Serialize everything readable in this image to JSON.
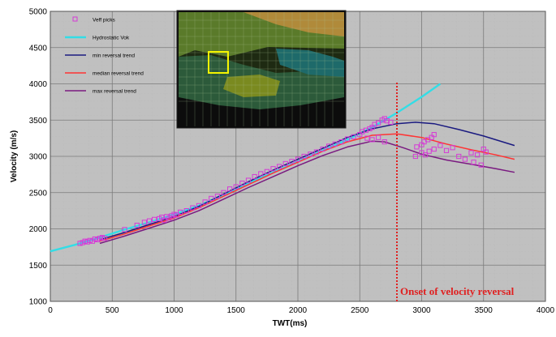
{
  "chart_data": {
    "type": "scatter",
    "title": "",
    "xlabel": "TWT(ms)",
    "ylabel": "Velocity (m/s)",
    "xlim": [
      0,
      4000
    ],
    "ylim": [
      1000,
      5000
    ],
    "xticks": [
      0,
      500,
      1000,
      1500,
      2000,
      2500,
      3000,
      3500,
      4000
    ],
    "yticks": [
      1000,
      1500,
      2000,
      2500,
      3000,
      3500,
      4000,
      4500,
      5000
    ],
    "grid": true,
    "legend_position": "top-left",
    "legend": [
      {
        "name": "Veff picks",
        "color": "#d63ad6",
        "marker": "square"
      },
      {
        "name": "Hydrostatic Vok",
        "color": "#33dde6",
        "marker": "line"
      },
      {
        "name": "min reversal trend",
        "color": "#1a1a80",
        "marker": "line"
      },
      {
        "name": "median reversal trend",
        "color": "#ff3333",
        "marker": "line"
      },
      {
        "name": "max reversal trend",
        "color": "#7a1a80",
        "marker": "line"
      }
    ],
    "series": [
      {
        "name": "Hydrostatic Vok",
        "color": "#33dde6",
        "points": [
          [
            0,
            1690
          ],
          [
            200,
            1780
          ],
          [
            400,
            1880
          ],
          [
            600,
            1990
          ],
          [
            800,
            2090
          ],
          [
            1000,
            2200
          ],
          [
            1200,
            2320
          ],
          [
            1400,
            2470
          ],
          [
            1600,
            2630
          ],
          [
            1800,
            2780
          ],
          [
            2000,
            2930
          ],
          [
            2200,
            3080
          ],
          [
            2400,
            3230
          ],
          [
            2600,
            3400
          ],
          [
            2800,
            3600
          ],
          [
            3000,
            3820
          ],
          [
            3150,
            4000
          ]
        ]
      },
      {
        "name": "min reversal trend",
        "color": "#1a1a80",
        "points": [
          [
            400,
            1850
          ],
          [
            600,
            1950
          ],
          [
            800,
            2060
          ],
          [
            1000,
            2170
          ],
          [
            1200,
            2310
          ],
          [
            1400,
            2480
          ],
          [
            1600,
            2650
          ],
          [
            1800,
            2810
          ],
          [
            2000,
            2960
          ],
          [
            2200,
            3110
          ],
          [
            2400,
            3260
          ],
          [
            2600,
            3380
          ],
          [
            2800,
            3450
          ],
          [
            2950,
            3470
          ],
          [
            3100,
            3450
          ],
          [
            3300,
            3370
          ],
          [
            3500,
            3280
          ],
          [
            3750,
            3150
          ]
        ]
      },
      {
        "name": "median reversal trend",
        "color": "#ff3333",
        "points": [
          [
            400,
            1830
          ],
          [
            600,
            1930
          ],
          [
            800,
            2040
          ],
          [
            1000,
            2150
          ],
          [
            1200,
            2290
          ],
          [
            1400,
            2450
          ],
          [
            1600,
            2610
          ],
          [
            1800,
            2770
          ],
          [
            2000,
            2920
          ],
          [
            2200,
            3070
          ],
          [
            2400,
            3200
          ],
          [
            2600,
            3290
          ],
          [
            2800,
            3310
          ],
          [
            3000,
            3260
          ],
          [
            3200,
            3170
          ],
          [
            3400,
            3090
          ],
          [
            3600,
            3020
          ],
          [
            3750,
            2960
          ]
        ]
      },
      {
        "name": "max reversal trend",
        "color": "#7a1a80",
        "points": [
          [
            400,
            1800
          ],
          [
            600,
            1900
          ],
          [
            800,
            2010
          ],
          [
            1000,
            2120
          ],
          [
            1200,
            2250
          ],
          [
            1400,
            2410
          ],
          [
            1600,
            2570
          ],
          [
            1800,
            2720
          ],
          [
            2000,
            2870
          ],
          [
            2200,
            3010
          ],
          [
            2400,
            3130
          ],
          [
            2600,
            3210
          ],
          [
            2700,
            3200
          ],
          [
            2850,
            3120
          ],
          [
            3000,
            3030
          ],
          [
            3200,
            2950
          ],
          [
            3400,
            2890
          ],
          [
            3600,
            2830
          ],
          [
            3750,
            2780
          ]
        ]
      },
      {
        "name": "Veff picks",
        "color": "#d63ad6",
        "points": [
          [
            240,
            1800
          ],
          [
            260,
            1810
          ],
          [
            280,
            1830
          ],
          [
            300,
            1820
          ],
          [
            320,
            1840
          ],
          [
            340,
            1830
          ],
          [
            360,
            1860
          ],
          [
            380,
            1850
          ],
          [
            400,
            1870
          ],
          [
            420,
            1880
          ],
          [
            440,
            1870
          ],
          [
            600,
            1990
          ],
          [
            700,
            2050
          ],
          [
            760,
            2090
          ],
          [
            800,
            2110
          ],
          [
            840,
            2130
          ],
          [
            880,
            2140
          ],
          [
            900,
            2160
          ],
          [
            920,
            2120
          ],
          [
            940,
            2170
          ],
          [
            960,
            2150
          ],
          [
            980,
            2180
          ],
          [
            1000,
            2200
          ],
          [
            1020,
            2190
          ],
          [
            1050,
            2230
          ],
          [
            1100,
            2250
          ],
          [
            1150,
            2290
          ],
          [
            1200,
            2320
          ],
          [
            1250,
            2370
          ],
          [
            1300,
            2420
          ],
          [
            1350,
            2450
          ],
          [
            1400,
            2500
          ],
          [
            1450,
            2550
          ],
          [
            1500,
            2580
          ],
          [
            1550,
            2630
          ],
          [
            1600,
            2670
          ],
          [
            1650,
            2720
          ],
          [
            1700,
            2760
          ],
          [
            1750,
            2790
          ],
          [
            1800,
            2830
          ],
          [
            1850,
            2860
          ],
          [
            1900,
            2900
          ],
          [
            1950,
            2930
          ],
          [
            2000,
            2960
          ],
          [
            2050,
            3000
          ],
          [
            2100,
            3030
          ],
          [
            2150,
            3060
          ],
          [
            2200,
            3100
          ],
          [
            2250,
            3140
          ],
          [
            2300,
            3170
          ],
          [
            2350,
            3200
          ],
          [
            2400,
            3240
          ],
          [
            2450,
            3270
          ],
          [
            2500,
            3300
          ],
          [
            2520,
            3340
          ],
          [
            2550,
            3360
          ],
          [
            2580,
            3380
          ],
          [
            2600,
            3400
          ],
          [
            2620,
            3440
          ],
          [
            2650,
            3460
          ],
          [
            2680,
            3500
          ],
          [
            2700,
            3520
          ],
          [
            2720,
            3490
          ],
          [
            2750,
            3470
          ],
          [
            2560,
            3250
          ],
          [
            2600,
            3230
          ],
          [
            2650,
            3260
          ],
          [
            2700,
            3200
          ],
          [
            2960,
            3130
          ],
          [
            3000,
            3160
          ],
          [
            3020,
            3200
          ],
          [
            3050,
            3230
          ],
          [
            3080,
            3260
          ],
          [
            3100,
            3300
          ],
          [
            3000,
            3050
          ],
          [
            3030,
            3020
          ],
          [
            3060,
            3070
          ],
          [
            3100,
            3100
          ],
          [
            3150,
            3150
          ],
          [
            3200,
            3080
          ],
          [
            3250,
            3120
          ],
          [
            2950,
            3000
          ],
          [
            3300,
            3000
          ],
          [
            3350,
            2960
          ],
          [
            3400,
            3050
          ],
          [
            3450,
            3020
          ],
          [
            3500,
            3100
          ],
          [
            3520,
            3060
          ],
          [
            3480,
            2880
          ],
          [
            3420,
            2920
          ]
        ]
      }
    ],
    "annotations": [
      {
        "text": "Onset of velocity reversal",
        "color": "#e02020",
        "x": 2800,
        "line_style": "dotted",
        "line_from": 1000,
        "line_to": 4020
      }
    ],
    "inset": {
      "description_label": "",
      "visible": true
    }
  }
}
